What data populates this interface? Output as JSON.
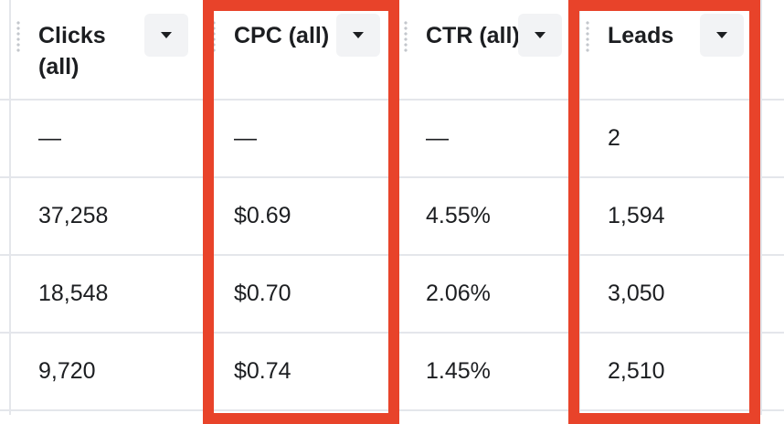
{
  "table": {
    "columns": [
      "Clicks (all)",
      "CPC (all)",
      "CTR (all)",
      "Leads"
    ],
    "rows": [
      [
        "—",
        "—",
        "—",
        "2"
      ],
      [
        "37,258",
        "$0.69",
        "4.55%",
        "1,594"
      ],
      [
        "18,548",
        "$0.70",
        "2.06%",
        "3,050"
      ],
      [
        "9,720",
        "$0.74",
        "1.45%",
        "2,510"
      ]
    ],
    "highlighted_columns": [
      1,
      3
    ]
  }
}
